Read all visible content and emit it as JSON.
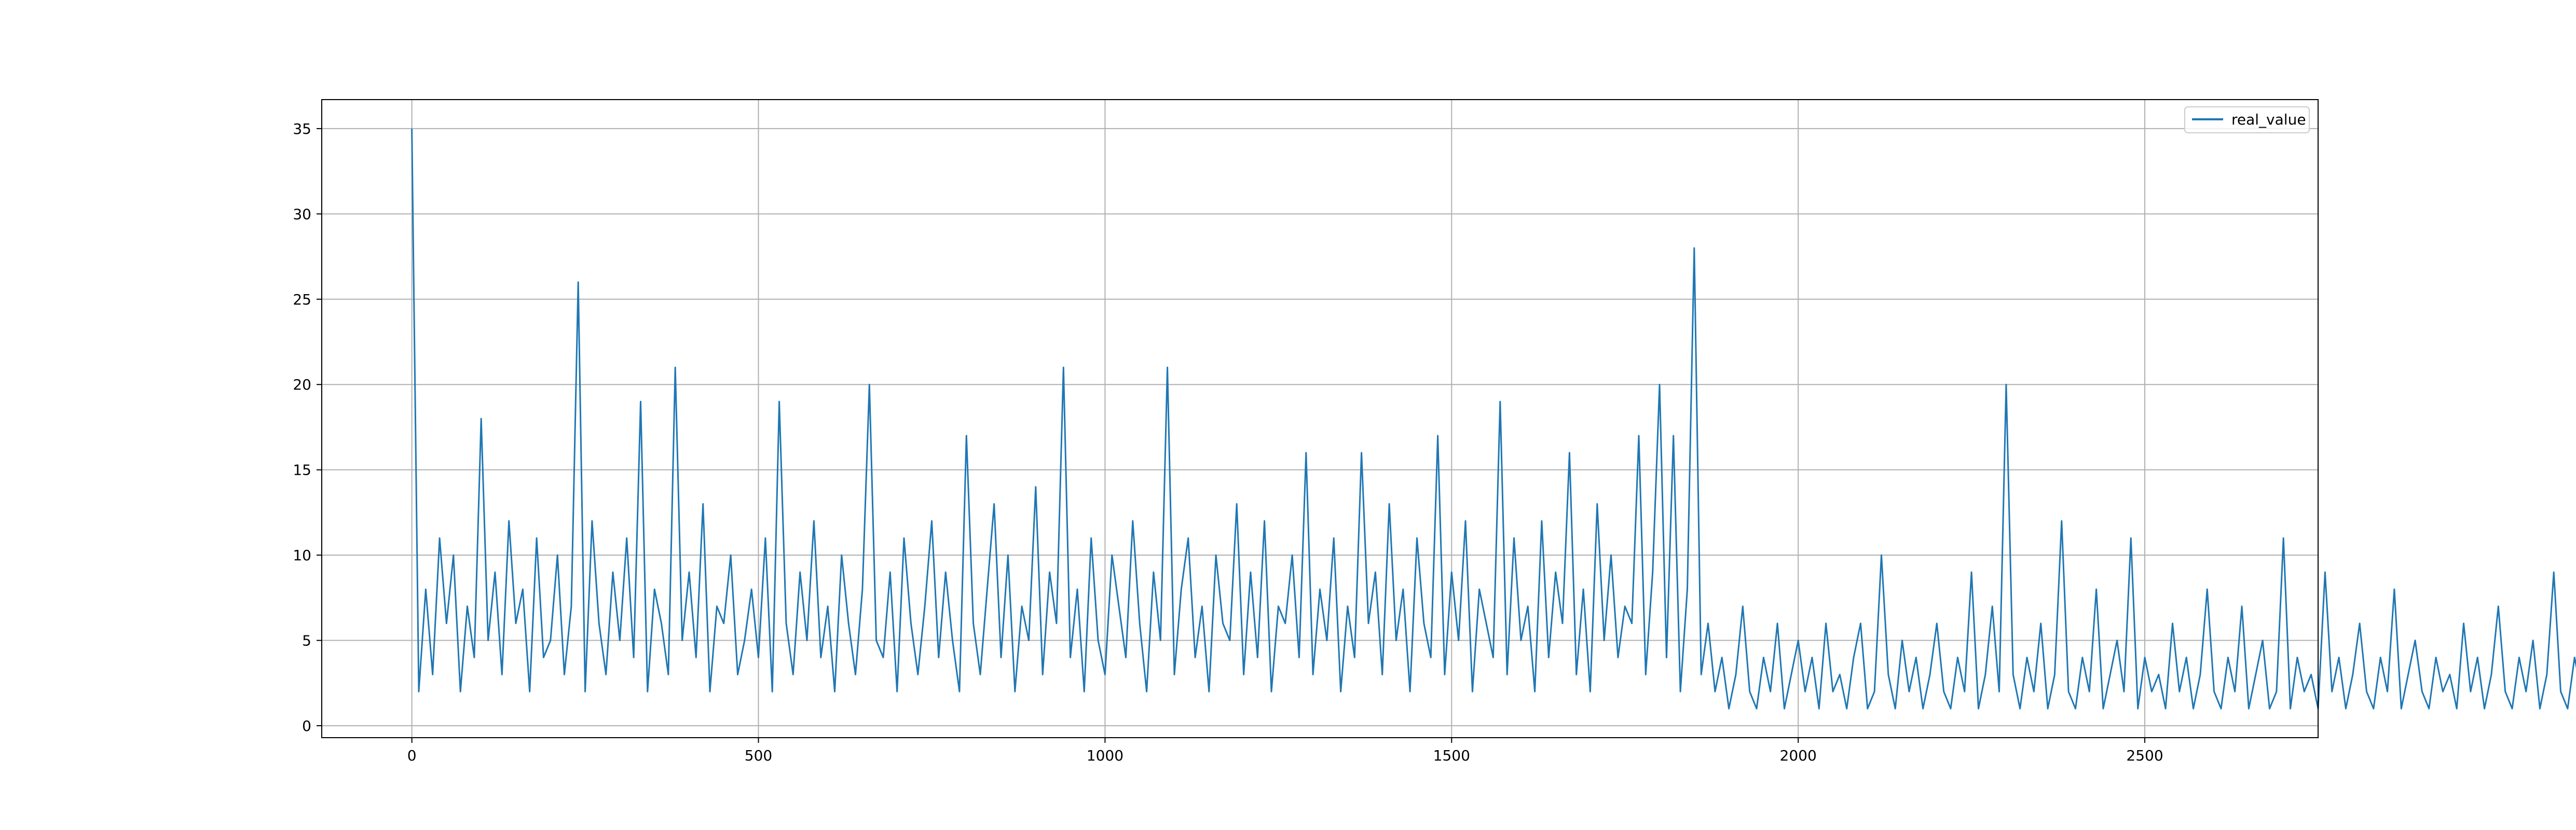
{
  "chart_data": {
    "type": "line",
    "title": "",
    "xlabel": "",
    "ylabel": "",
    "xlim": [
      -130,
      2750
    ],
    "ylim": [
      -0.7,
      36.7
    ],
    "x_ticks": [
      0,
      500,
      1000,
      1500,
      2000,
      2500
    ],
    "x_tick_labels": [
      "0",
      "500",
      "1000",
      "1500",
      "2000",
      "2500"
    ],
    "y_ticks": [
      0,
      5,
      10,
      15,
      20,
      25,
      30,
      35
    ],
    "y_tick_labels": [
      "0",
      "5",
      "10",
      "15",
      "20",
      "25",
      "30",
      "35"
    ],
    "grid": true,
    "legend_position": "top-right",
    "series": [
      {
        "name": "real_value",
        "color": "#1f77b4",
        "x_start": 0,
        "x_step": 10,
        "values": [
          35,
          2,
          8,
          3,
          11,
          6,
          10,
          2,
          7,
          4,
          18,
          5,
          9,
          3,
          12,
          6,
          8,
          2,
          11,
          4,
          5,
          10,
          3,
          7,
          26,
          2,
          12,
          6,
          3,
          9,
          5,
          11,
          4,
          19,
          2,
          8,
          6,
          3,
          21,
          5,
          9,
          4,
          13,
          2,
          7,
          6,
          10,
          3,
          5,
          8,
          4,
          11,
          2,
          19,
          6,
          3,
          9,
          5,
          12,
          4,
          7,
          2,
          10,
          6,
          3,
          8,
          20,
          5,
          4,
          9,
          2,
          11,
          6,
          3,
          7,
          12,
          4,
          9,
          5,
          2,
          17,
          6,
          3,
          8,
          13,
          4,
          10,
          2,
          7,
          5,
          14,
          3,
          9,
          6,
          21,
          4,
          8,
          2,
          11,
          5,
          3,
          10,
          7,
          4,
          12,
          6,
          2,
          9,
          5,
          21,
          3,
          8,
          11,
          4,
          7,
          2,
          10,
          6,
          5,
          13,
          3,
          9,
          4,
          12,
          2,
          7,
          6,
          10,
          4,
          16,
          3,
          8,
          5,
          11,
          2,
          7,
          4,
          16,
          6,
          9,
          3,
          13,
          5,
          8,
          2,
          11,
          6,
          4,
          17,
          3,
          9,
          5,
          12,
          2,
          8,
          6,
          4,
          19,
          3,
          11,
          5,
          7,
          2,
          12,
          4,
          9,
          6,
          16,
          3,
          8,
          2,
          13,
          5,
          10,
          4,
          7,
          6,
          17,
          3,
          9,
          20,
          4,
          17,
          2,
          8,
          28,
          3,
          6,
          2,
          4,
          1,
          3,
          7,
          2,
          1,
          4,
          2,
          6,
          1,
          3,
          5,
          2,
          4,
          1,
          6,
          2,
          3,
          1,
          4,
          6,
          1,
          2,
          10,
          3,
          1,
          5,
          2,
          4,
          1,
          3,
          6,
          2,
          1,
          4,
          2,
          9,
          1,
          3,
          7,
          2,
          20,
          3,
          1,
          4,
          2,
          6,
          1,
          3,
          12,
          2,
          1,
          4,
          2,
          8,
          1,
          3,
          5,
          2,
          11,
          1,
          4,
          2,
          3,
          1,
          6,
          2,
          4,
          1,
          3,
          8,
          2,
          1,
          4,
          2,
          7,
          1,
          3,
          5,
          1,
          2,
          11,
          1,
          4,
          2,
          3,
          1,
          9,
          2,
          4,
          1,
          3,
          6,
          2,
          1,
          4,
          2,
          8,
          1,
          3,
          5,
          2,
          1,
          4,
          2,
          3,
          1,
          6,
          2,
          4,
          1,
          3,
          7,
          2,
          1,
          4,
          2,
          5,
          1,
          3,
          9,
          2,
          1,
          4,
          2,
          6,
          1,
          3,
          5,
          2,
          4,
          1,
          8,
          2,
          3,
          1,
          5,
          2,
          4,
          1,
          6,
          3,
          2,
          11,
          4,
          2,
          5,
          3,
          7,
          2,
          4,
          6,
          1,
          12,
          3,
          5,
          2,
          7,
          4,
          2,
          9,
          3,
          6,
          1,
          8,
          2,
          5,
          4,
          13,
          2,
          6,
          3,
          10,
          4,
          2,
          7,
          5,
          11,
          3,
          6,
          2,
          9,
          4,
          17,
          3,
          8,
          2,
          12,
          5,
          6,
          3,
          10,
          2,
          14,
          4,
          7,
          3,
          9,
          5,
          2,
          11,
          6,
          4,
          8,
          2,
          14,
          3,
          10,
          5,
          6,
          2,
          12,
          4,
          7,
          3,
          20,
          5,
          9,
          2,
          11,
          6,
          4,
          15,
          3,
          8,
          2,
          13,
          5,
          10,
          6,
          4,
          7,
          2,
          9,
          3,
          14,
          5,
          2,
          11,
          4,
          6,
          3,
          8,
          1,
          3,
          1,
          4,
          2,
          9,
          3,
          14,
          5,
          8,
          19,
          6,
          12,
          20,
          4,
          14,
          9,
          6,
          17,
          5,
          13,
          8,
          19,
          4,
          11,
          7,
          15,
          5,
          10,
          6,
          20,
          8,
          13,
          5,
          21,
          7,
          11,
          9,
          22,
          6,
          14,
          8,
          24,
          5,
          10,
          12,
          24,
          6,
          13,
          4,
          17,
          8,
          14,
          4
        ]
      }
    ]
  }
}
